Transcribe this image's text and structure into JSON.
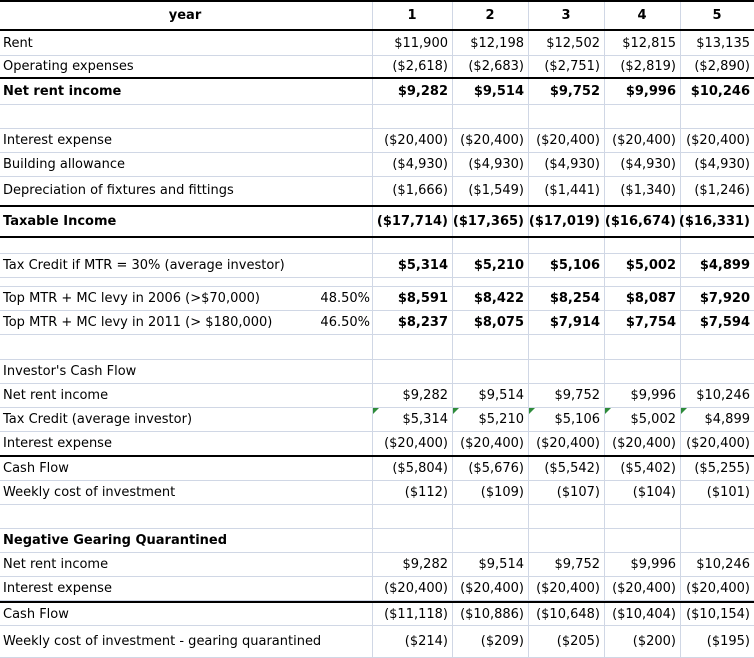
{
  "header": {
    "label": "year",
    "years": [
      "1",
      "2",
      "3",
      "4",
      "5"
    ]
  },
  "rows": {
    "rent": {
      "label": "Rent",
      "values": [
        "$11,900",
        "$12,198",
        "$12,502",
        "$12,815",
        "$13,135"
      ]
    },
    "opex": {
      "label": "Operating expenses",
      "values": [
        "($2,618)",
        "($2,683)",
        "($2,751)",
        "($2,819)",
        "($2,890)"
      ]
    },
    "net_rent": {
      "label": "Net rent income",
      "values": [
        "$9,282",
        "$9,514",
        "$9,752",
        "$9,996",
        "$10,246"
      ]
    },
    "interest": {
      "label": "Interest expense",
      "values": [
        "($20,400)",
        "($20,400)",
        "($20,400)",
        "($20,400)",
        "($20,400)"
      ]
    },
    "building": {
      "label": "Building allowance",
      "values": [
        "($4,930)",
        "($4,930)",
        "($4,930)",
        "($4,930)",
        "($4,930)"
      ]
    },
    "depreciation": {
      "label": "Depreciation of fixtures and fittings",
      "values": [
        "($1,666)",
        "($1,549)",
        "($1,441)",
        "($1,340)",
        "($1,246)"
      ]
    },
    "taxable": {
      "label": "Taxable Income",
      "values": [
        "($17,714)",
        "($17,365)",
        "($17,019)",
        "($16,674)",
        "($16,331)"
      ]
    },
    "tax_credit": {
      "label": "Tax Credit if MTR = 30% (average investor)",
      "values": [
        "$5,314",
        "$5,210",
        "$5,106",
        "$5,002",
        "$4,899"
      ]
    },
    "top_2006": {
      "label": "Top MTR + MC levy in 2006 (>$70,000)",
      "rate": "48.50%",
      "values": [
        "$8,591",
        "$8,422",
        "$8,254",
        "$8,087",
        "$7,920"
      ]
    },
    "top_2011": {
      "label": "Top MTR + MC levy in 2011 (> $180,000)",
      "rate": "46.50%",
      "values": [
        "$8,237",
        "$8,075",
        "$7,914",
        "$7,754",
        "$7,594"
      ]
    },
    "icf_title": {
      "label": "Investor's Cash Flow"
    },
    "icf_net": {
      "label": "Net rent income",
      "values": [
        "$9,282",
        "$9,514",
        "$9,752",
        "$9,996",
        "$10,246"
      ]
    },
    "icf_credit": {
      "label": "Tax Credit (average investor)",
      "values": [
        "$5,314",
        "$5,210",
        "$5,106",
        "$5,002",
        "$4,899"
      ]
    },
    "icf_interest": {
      "label": "Interest expense",
      "values": [
        "($20,400)",
        "($20,400)",
        "($20,400)",
        "($20,400)",
        "($20,400)"
      ]
    },
    "icf_cash": {
      "label": "Cash Flow",
      "values": [
        "($5,804)",
        "($5,676)",
        "($5,542)",
        "($5,402)",
        "($5,255)"
      ]
    },
    "icf_weekly": {
      "label": "Weekly cost of investment",
      "values": [
        "($112)",
        "($109)",
        "($107)",
        "($104)",
        "($101)"
      ]
    },
    "ngq_title": {
      "label": "Negative Gearing Quarantined"
    },
    "ngq_net": {
      "label": "Net rent income",
      "values": [
        "$9,282",
        "$9,514",
        "$9,752",
        "$9,996",
        "$10,246"
      ]
    },
    "ngq_interest": {
      "label": "Interest expense",
      "values": [
        "($20,400)",
        "($20,400)",
        "($20,400)",
        "($20,400)",
        "($20,400)"
      ]
    },
    "ngq_cash": {
      "label": "Cash Flow",
      "values": [
        "($11,118)",
        "($10,886)",
        "($10,648)",
        "($10,404)",
        "($10,154)"
      ]
    },
    "ngq_weekly": {
      "label": "Weekly cost of investment - gearing quarantined",
      "values": [
        "($214)",
        "($209)",
        "($205)",
        "($200)",
        "($195)"
      ]
    }
  }
}
